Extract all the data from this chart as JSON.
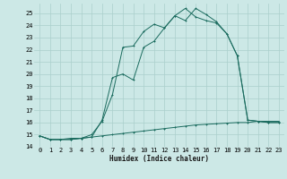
{
  "xlabel": "Humidex (Indice chaleur)",
  "bg_color": "#cce8e6",
  "line_color": "#1a6b5e",
  "grid_color": "#aacfcc",
  "xlim": [
    -0.5,
    23.5
  ],
  "ylim": [
    14,
    25.8
  ],
  "yticks": [
    14,
    15,
    16,
    17,
    18,
    19,
    20,
    21,
    22,
    23,
    24,
    25
  ],
  "xticks": [
    0,
    1,
    2,
    3,
    4,
    5,
    6,
    7,
    8,
    9,
    10,
    11,
    12,
    13,
    14,
    15,
    16,
    17,
    18,
    19,
    20,
    21,
    22,
    23
  ],
  "curve1_x": [
    0,
    1,
    2,
    3,
    4,
    5,
    6,
    7,
    8,
    9,
    10,
    11,
    12,
    13,
    14,
    15,
    16,
    17,
    18,
    19,
    20,
    21,
    22,
    23
  ],
  "curve1_y": [
    14.9,
    14.6,
    14.6,
    14.6,
    14.7,
    14.8,
    14.9,
    15.0,
    15.1,
    15.2,
    15.3,
    15.4,
    15.5,
    15.6,
    15.7,
    15.8,
    15.85,
    15.9,
    15.95,
    16.0,
    16.0,
    16.1,
    16.1,
    16.1
  ],
  "curve2_x": [
    0,
    1,
    2,
    3,
    4,
    5,
    6,
    7,
    8,
    9,
    10,
    11,
    12,
    13,
    14,
    15,
    16,
    17,
    18,
    19,
    20,
    21,
    22,
    23
  ],
  "curve2_y": [
    14.9,
    14.6,
    14.6,
    14.7,
    14.7,
    15.0,
    16.1,
    18.3,
    22.2,
    22.3,
    23.5,
    24.1,
    23.8,
    24.8,
    25.4,
    24.7,
    24.4,
    24.2,
    23.3,
    21.5,
    16.2,
    16.1,
    16.0,
    16.0
  ],
  "curve3_x": [
    0,
    1,
    2,
    3,
    4,
    5,
    6,
    7,
    8,
    9,
    10,
    11,
    12,
    13,
    14,
    15,
    16,
    17,
    18,
    19,
    20,
    21,
    22,
    23
  ],
  "curve3_y": [
    14.9,
    14.6,
    14.6,
    14.6,
    14.7,
    14.8,
    16.2,
    19.7,
    20.0,
    19.5,
    22.2,
    22.7,
    23.8,
    24.8,
    24.4,
    25.4,
    24.9,
    24.3,
    23.3,
    21.5,
    16.2,
    16.1,
    16.0,
    16.0
  ]
}
